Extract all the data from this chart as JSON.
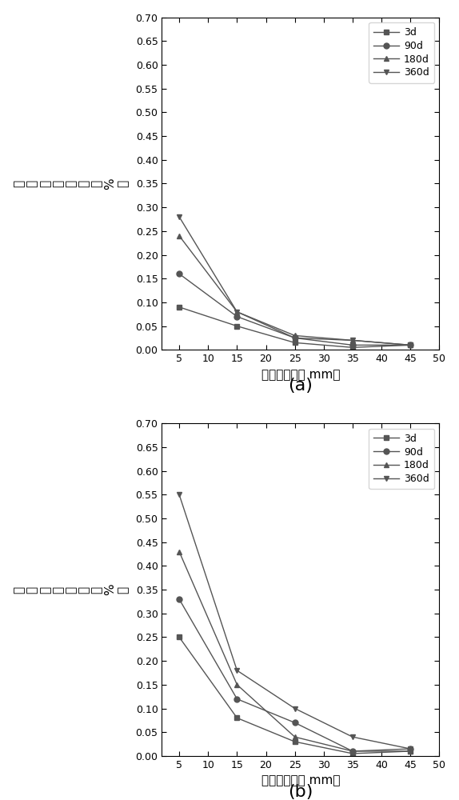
{
  "x_values": [
    5,
    15,
    25,
    35,
    45
  ],
  "chart_a": {
    "series": {
      "3d": [
        0.09,
        0.05,
        0.015,
        0.005,
        0.01
      ],
      "90d": [
        0.16,
        0.07,
        0.025,
        0.01,
        0.01
      ],
      "180d": [
        0.24,
        0.08,
        0.03,
        0.02,
        0.01
      ],
      "360d": [
        0.28,
        0.08,
        0.025,
        0.02,
        0.01
      ]
    }
  },
  "chart_b": {
    "series": {
      "3d": [
        0.25,
        0.08,
        0.03,
        0.005,
        0.01
      ],
      "90d": [
        0.33,
        0.12,
        0.07,
        0.01,
        0.015
      ],
      "180d": [
        0.43,
        0.15,
        0.04,
        0.01,
        0.01
      ],
      "360d": [
        0.55,
        0.18,
        0.1,
        0.04,
        0.015
      ]
    }
  },
  "legend_labels": [
    "3d",
    "90d",
    "180d",
    "360d"
  ],
  "markers": [
    "s",
    "o",
    "^",
    "v"
  ],
  "xlabel": "距表面距离（ mm）",
  "ylabel_chars": [
    "亚",
    "牁",
    "酸",
    "根",
    "浓",
    "度",
    "（",
    "%",
    "）"
  ],
  "label_a": "(a)",
  "label_b": "(b)",
  "xlim": [
    2,
    50
  ],
  "ylim": [
    0.0,
    0.7
  ],
  "yticks": [
    0.0,
    0.05,
    0.1,
    0.15,
    0.2,
    0.25,
    0.3,
    0.35,
    0.4,
    0.45,
    0.5,
    0.55,
    0.6,
    0.65,
    0.7
  ],
  "xticks": [
    5,
    10,
    15,
    20,
    25,
    30,
    35,
    40,
    45,
    50
  ],
  "background_color": "#ffffff",
  "line_color": "#555555"
}
